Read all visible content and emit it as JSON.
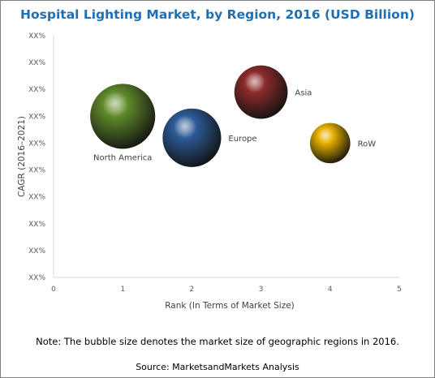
{
  "chart_data": {
    "type": "scatter",
    "title": "Hospital Lighting Market, by Region, 2016 (USD Billion)",
    "xlabel": "Rank (In Terms of Market Size)",
    "ylabel": "CAGR (2016–2021)",
    "xlim": [
      0,
      5
    ],
    "x_ticks": [
      "0",
      "1",
      "2",
      "3",
      "4",
      "5"
    ],
    "y_ticks": [
      "XX%",
      "XX%",
      "XX%",
      "XX%",
      "XX%",
      "XX%",
      "XX%",
      "XX%",
      "XX%",
      "XX%"
    ],
    "grid": false,
    "points": [
      {
        "label": "North America",
        "x": 1,
        "y_level": 6.0,
        "size": 1.0,
        "color": "#5f8a2a",
        "label_pos": "below"
      },
      {
        "label": "Europe",
        "x": 2,
        "y_level": 5.2,
        "size": 0.9,
        "color": "#2c5b96",
        "label_pos": "right"
      },
      {
        "label": "Asia",
        "x": 3,
        "y_level": 6.9,
        "size": 0.82,
        "color": "#8c2b2b",
        "label_pos": "right"
      },
      {
        "label": "RoW",
        "x": 4,
        "y_level": 5.0,
        "size": 0.62,
        "color": "#e6b000",
        "label_pos": "right"
      }
    ]
  },
  "notes": {
    "note": "Note: The bubble size denotes the market size of geographic regions in 2016.",
    "source": "Source: MarketsandMarkets Analysis"
  }
}
